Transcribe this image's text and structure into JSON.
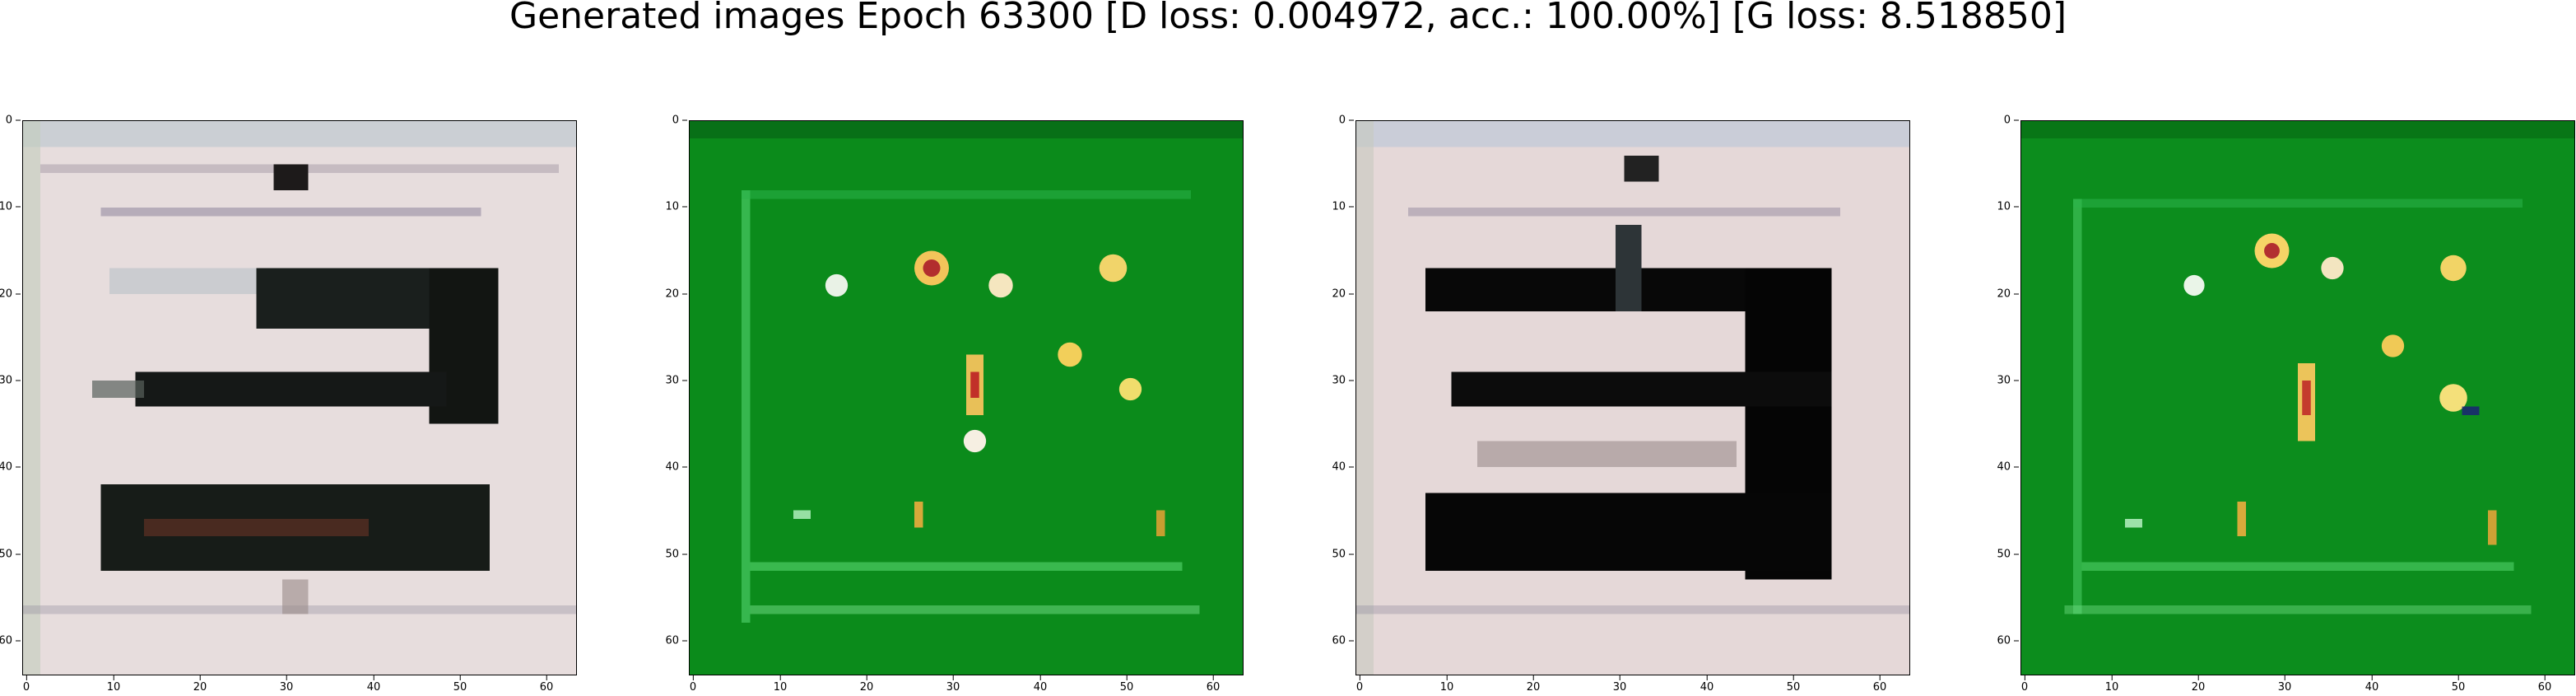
{
  "figure": {
    "title": "Generated images Epoch 63300 [D loss: 0.004972, acc.: 100.00%] [G loss: 8.518850]"
  },
  "axes": {
    "x_ticks": [
      "0",
      "10",
      "20",
      "30",
      "40",
      "50",
      "60"
    ],
    "y_ticks": [
      "0",
      "10",
      "20",
      "30",
      "40",
      "50",
      "60"
    ],
    "x_range": [
      0,
      64
    ],
    "y_range": [
      0,
      64
    ]
  },
  "panels": [
    {
      "id": "image-1",
      "style": "white-sign",
      "background": "#e6dada",
      "bars_color": "#141a14"
    },
    {
      "id": "image-2",
      "style": "green-sign",
      "background": "#0a8a1a",
      "accent": "#f2c24a"
    },
    {
      "id": "image-3",
      "style": "white-sign",
      "background": "#e4d6d6",
      "bars_color": "#050505"
    },
    {
      "id": "image-4",
      "style": "green-sign",
      "background": "#0b8f1c",
      "accent": "#f4cf5a"
    }
  ]
}
